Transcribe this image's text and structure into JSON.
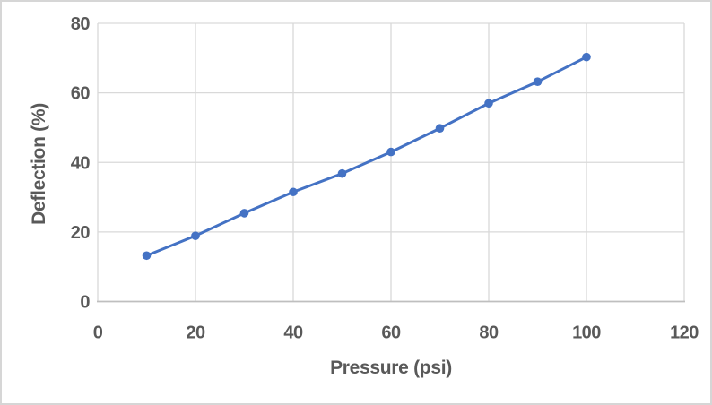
{
  "chart_data": {
    "type": "line",
    "series": [
      {
        "x": [
          10,
          20,
          30,
          40,
          50,
          60,
          70,
          80,
          90,
          100
        ],
        "y": [
          13.2,
          18.9,
          25.4,
          31.5,
          36.8,
          43.0,
          49.8,
          57.0,
          63.2,
          70.3
        ],
        "color": "#4472C4",
        "marker": "circle",
        "marker_radius": 4.8,
        "line_width": 3
      }
    ],
    "xlabel": "Pressure (psi)",
    "ylabel": "Deflection (%)",
    "xlim": [
      0,
      120
    ],
    "ylim": [
      0,
      80
    ],
    "xticks": [
      0,
      20,
      40,
      60,
      80,
      100,
      120
    ],
    "yticks": [
      0,
      20,
      40,
      60,
      80
    ],
    "grid": true,
    "legend": "none"
  },
  "colors": {
    "series": "#4472C4",
    "gridline": "#D9D9D9",
    "axis_line": "#BFBFBF",
    "tick_label": "#595959",
    "axis_title": "#595959",
    "background": "#FFFFFF",
    "frame_border": "#D6D6D6"
  }
}
